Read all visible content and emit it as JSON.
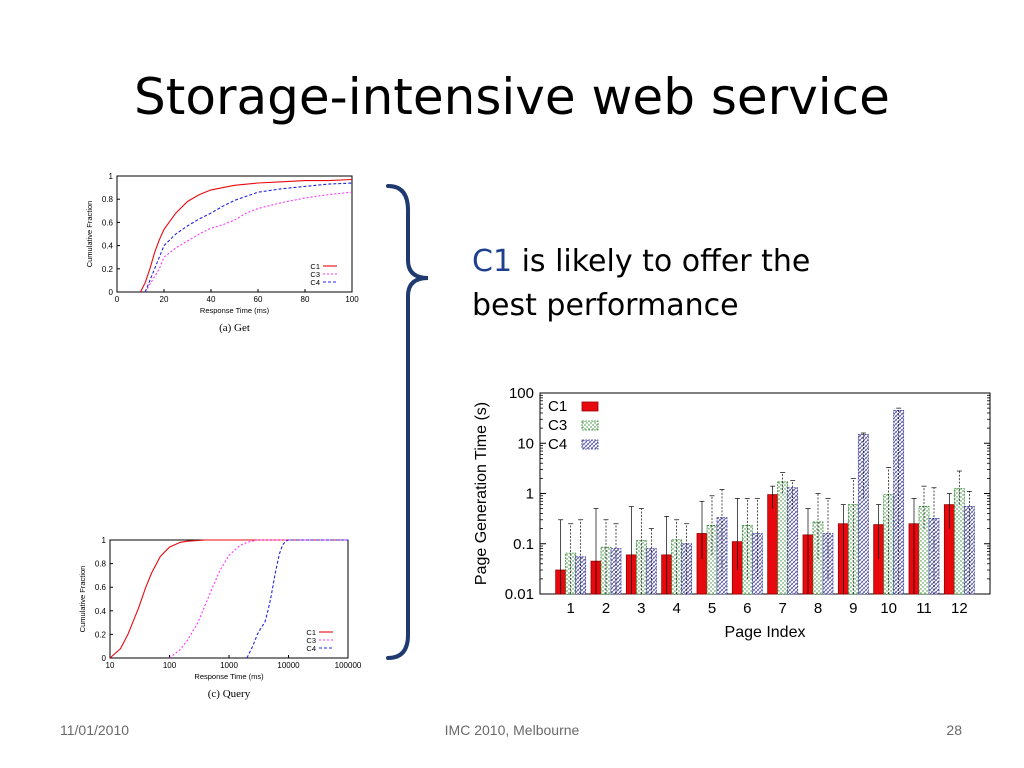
{
  "slide": {
    "title": "Storage-intensive web service",
    "claim_highlight": "C1",
    "claim_rest": " is likely to offer the best performance",
    "footer_date": "11/01/2010",
    "footer_venue": "IMC 2010, Melbourne",
    "footer_page": "28"
  },
  "colors": {
    "bracket": "#1f3a6e",
    "c1": "#e8090f",
    "c3": "#ff33ff",
    "c4": "#2424e0",
    "bar_c3_stroke": "#2f8a2f",
    "bar_c4_stroke": "#3a3a9a"
  },
  "chart_data": [
    {
      "id": "get-cdf",
      "type": "line",
      "caption": "(a) Get",
      "xlabel": "Response Time (ms)",
      "ylabel": "Cumulative Fraction",
      "xlim": [
        0,
        100
      ],
      "ylim": [
        0,
        1
      ],
      "xticks": [
        0,
        20,
        40,
        60,
        80,
        100
      ],
      "yticks": [
        0,
        0.2,
        0.4,
        0.6,
        0.8,
        1
      ],
      "ytick_labels": [
        "0",
        "0.2",
        "0.4",
        "0.6",
        "0.8",
        "1"
      ],
      "legend": "bottom-right",
      "series": [
        {
          "name": "C1",
          "x": [
            10,
            12,
            14,
            16,
            18,
            20,
            25,
            30,
            35,
            40,
            50,
            60,
            70,
            80,
            90,
            100
          ],
          "y": [
            0,
            0.08,
            0.2,
            0.34,
            0.45,
            0.54,
            0.68,
            0.78,
            0.84,
            0.88,
            0.92,
            0.94,
            0.95,
            0.96,
            0.96,
            0.97
          ]
        },
        {
          "name": "C3",
          "x": [
            12,
            15,
            18,
            20,
            25,
            30,
            35,
            40,
            45,
            50,
            55,
            60,
            70,
            80,
            90,
            100
          ],
          "y": [
            0,
            0.1,
            0.2,
            0.3,
            0.38,
            0.44,
            0.5,
            0.55,
            0.58,
            0.62,
            0.68,
            0.72,
            0.77,
            0.81,
            0.84,
            0.86
          ]
        },
        {
          "name": "C4",
          "x": [
            12,
            14,
            16,
            18,
            20,
            25,
            30,
            35,
            40,
            45,
            50,
            60,
            70,
            80,
            90,
            100
          ],
          "y": [
            0,
            0.1,
            0.2,
            0.3,
            0.4,
            0.5,
            0.57,
            0.63,
            0.68,
            0.74,
            0.79,
            0.86,
            0.89,
            0.91,
            0.93,
            0.94
          ]
        }
      ]
    },
    {
      "id": "query-cdf",
      "type": "line",
      "caption": "(c) Query",
      "xlabel": "Response Time (ms)",
      "ylabel": "Cumulative Fraction",
      "xscale": "log",
      "xlim": [
        10,
        100000
      ],
      "ylim": [
        0,
        1
      ],
      "xticks": [
        10,
        100,
        1000,
        10000,
        100000
      ],
      "xtick_labels": [
        "10",
        "100",
        "1000",
        "10000",
        "100000"
      ],
      "yticks": [
        0,
        0.2,
        0.4,
        0.6,
        0.8,
        1
      ],
      "ytick_labels": [
        "0",
        "0.2",
        "0.4",
        "0.6",
        "0.8",
        "1"
      ],
      "legend": "bottom-right",
      "series": [
        {
          "name": "C1",
          "x": [
            10,
            15,
            20,
            30,
            40,
            50,
            70,
            100,
            150,
            200,
            400,
            1000,
            100000
          ],
          "y": [
            0,
            0.08,
            0.2,
            0.42,
            0.6,
            0.72,
            0.86,
            0.94,
            0.98,
            0.99,
            1,
            1,
            1
          ]
        },
        {
          "name": "C3",
          "x": [
            100,
            150,
            200,
            300,
            400,
            500,
            700,
            1000,
            1500,
            2000,
            3000,
            5000,
            100000
          ],
          "y": [
            0,
            0.07,
            0.15,
            0.3,
            0.45,
            0.57,
            0.74,
            0.87,
            0.95,
            0.98,
            1,
            1,
            1
          ]
        },
        {
          "name": "C4",
          "x": [
            2000,
            2500,
            3000,
            3500,
            4000,
            4500,
            5000,
            6000,
            7000,
            8000,
            9000,
            10000,
            100000
          ],
          "y": [
            0,
            0.1,
            0.2,
            0.26,
            0.3,
            0.4,
            0.5,
            0.72,
            0.88,
            0.96,
            0.99,
            1,
            1
          ]
        }
      ]
    },
    {
      "id": "page-generation",
      "type": "bar",
      "xlabel": "Page Index",
      "ylabel": "Page Generation Time (s)",
      "yscale": "log",
      "ylim": [
        0.01,
        100
      ],
      "yticks": [
        0.01,
        0.1,
        1,
        10,
        100
      ],
      "ytick_labels": [
        "0.01",
        "0.1",
        "1",
        "10",
        "100"
      ],
      "legend": "top-left",
      "categories": [
        "1",
        "2",
        "3",
        "4",
        "5",
        "6",
        "7",
        "8",
        "9",
        "10",
        "11",
        "12"
      ],
      "series": [
        {
          "name": "C1",
          "values": [
            0.03,
            0.045,
            0.06,
            0.06,
            0.16,
            0.11,
            0.95,
            0.15,
            0.25,
            0.24,
            0.25,
            0.6
          ],
          "err_low": [
            0.01,
            0.01,
            0.01,
            0.01,
            0.05,
            0.03,
            0.5,
            0.01,
            0.01,
            0.05,
            0.01,
            0.2
          ],
          "err_high": [
            0.3,
            0.5,
            0.55,
            0.35,
            0.7,
            0.8,
            1.4,
            0.5,
            0.6,
            0.6,
            0.8,
            1.0
          ]
        },
        {
          "name": "C3",
          "values": [
            0.065,
            0.085,
            0.115,
            0.12,
            0.23,
            0.23,
            1.7,
            0.27,
            0.6,
            0.95,
            0.55,
            1.25
          ],
          "err_low": [
            0.01,
            0.01,
            0.01,
            0.01,
            0.06,
            0.02,
            1.0,
            0.05,
            0.01,
            0.01,
            0.2,
            0.6
          ],
          "err_high": [
            0.25,
            0.3,
            0.5,
            0.3,
            0.9,
            0.8,
            2.6,
            1.0,
            2.0,
            3.3,
            1.4,
            2.8
          ]
        },
        {
          "name": "C4",
          "values": [
            0.055,
            0.08,
            0.08,
            0.1,
            0.33,
            0.16,
            1.3,
            0.16,
            15,
            45,
            0.32,
            0.55
          ],
          "err_low": [
            0.01,
            0.01,
            0.01,
            0.01,
            0.02,
            0.02,
            0.5,
            0.02,
            0.8,
            0.01,
            0.01,
            0.01
          ],
          "err_high": [
            0.3,
            0.25,
            0.2,
            0.25,
            1.2,
            0.8,
            1.8,
            0.8,
            16,
            50,
            1.3,
            1.1
          ]
        }
      ]
    }
  ]
}
